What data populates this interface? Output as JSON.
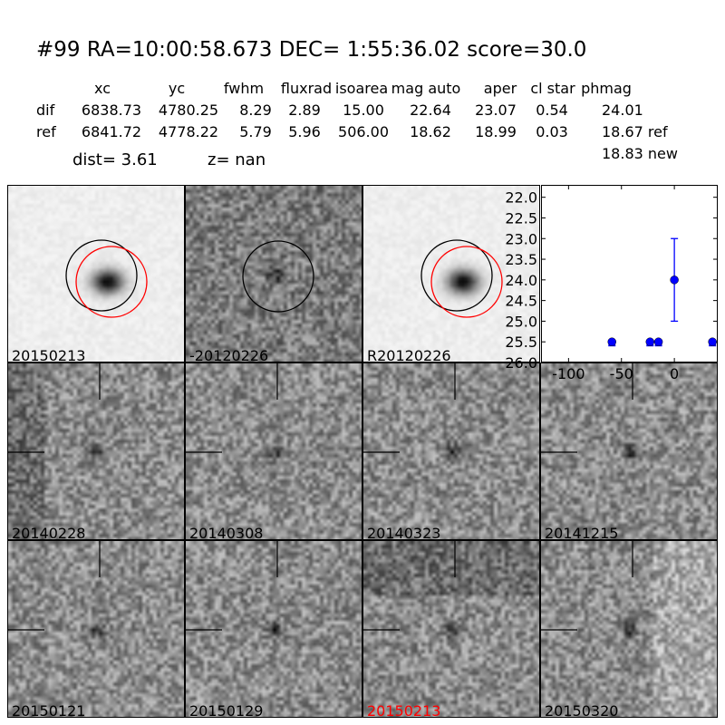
{
  "header": {
    "title": "#99   RA=10:00:58.673 DEC= 1:55:36.02      score=30.0",
    "columns": [
      "xc",
      "yc",
      "fwhm",
      "fluxrad",
      "isoarea",
      "mag auto",
      "aper",
      "cl star",
      "phmag"
    ],
    "rows": [
      {
        "label": "dif",
        "values": [
          "6838.73",
          "4780.25",
          "8.29",
          "2.89",
          "15.00",
          "22.64",
          "23.07",
          "0.54",
          "24.01"
        ]
      },
      {
        "label": "ref",
        "values": [
          "6841.72",
          "4778.22",
          "5.79",
          "5.96",
          "506.00",
          "18.62",
          "18.99",
          "0.03",
          "18.67 ref"
        ]
      }
    ],
    "extra_phmag": "18.83 new",
    "dist": "dist=  3.61",
    "z": "z=   nan"
  },
  "panels": [
    {
      "label": "20150213",
      "kind": "new",
      "label_color": "#000000"
    },
    {
      "label": "-20120226",
      "kind": "diff",
      "label_color": "#000000"
    },
    {
      "label": "R20120226",
      "kind": "ref",
      "label_color": "#000000"
    },
    {
      "label": "20140228",
      "kind": "epoch",
      "label_color": "#000000"
    },
    {
      "label": "20140308",
      "kind": "epoch",
      "label_color": "#000000"
    },
    {
      "label": "20140323",
      "kind": "epoch",
      "label_color": "#000000"
    },
    {
      "label": "20141215",
      "kind": "epoch",
      "label_color": "#000000"
    },
    {
      "label": "20150121",
      "kind": "epoch",
      "label_color": "#000000"
    },
    {
      "label": "20150129",
      "kind": "epoch",
      "label_color": "#000000"
    },
    {
      "label": "20150213",
      "kind": "epoch",
      "label_color": "#ff0000"
    },
    {
      "label": "20150320",
      "kind": "epoch",
      "label_color": "#000000"
    }
  ],
  "colors": {
    "circle_dif": "#000000",
    "circle_ref": "#ff0000",
    "points": "#0000ff"
  },
  "chart_data": {
    "type": "scatter",
    "xlim": [
      -126,
      41
    ],
    "ylim": [
      26.0,
      21.7
    ],
    "y_inverted": true,
    "xticks": [
      "-100",
      "-50",
      "0"
    ],
    "xtick_values": [
      -100,
      -50,
      0
    ],
    "yticks": [
      "22.0",
      "22.5",
      "23.0",
      "23.5",
      "24.0",
      "24.5",
      "25.0",
      "25.5",
      "26.0"
    ],
    "ytick_values": [
      22.0,
      22.5,
      23.0,
      23.5,
      24.0,
      24.5,
      25.0,
      25.5,
      26.0
    ],
    "points": [
      {
        "x": -59,
        "y": 25.5,
        "upper_limit": true
      },
      {
        "x": -23,
        "y": 25.5,
        "upper_limit": true
      },
      {
        "x": -15,
        "y": 25.5,
        "upper_limit": true
      },
      {
        "x": 0,
        "y": 24.0,
        "yerr": 1.0
      },
      {
        "x": 36,
        "y": 25.5,
        "upper_limit": true
      }
    ]
  }
}
